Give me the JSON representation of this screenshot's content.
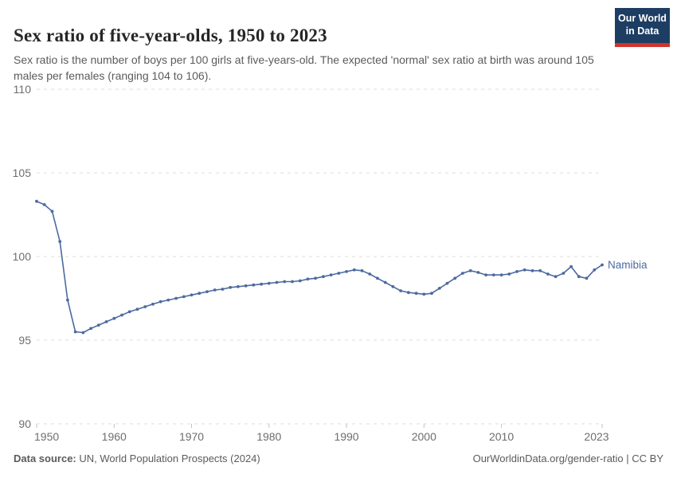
{
  "header": {
    "title": "Sex ratio of five-year-olds, 1950 to 2023",
    "subtitle": "Sex ratio is the number of boys per 100 girls at five-years-old. The expected 'normal' sex ratio at birth was around 105 males per females (ranging 104 to 106).",
    "logo": {
      "line1": "Our World",
      "line2": "in Data"
    }
  },
  "chart_data": {
    "type": "line",
    "title": "Sex ratio of five-year-olds, 1950 to 2023",
    "xlabel": "",
    "ylabel": "",
    "xlim": [
      1950,
      2023
    ],
    "ylim": [
      90,
      110
    ],
    "y_ticks": [
      90,
      95,
      100,
      105,
      110
    ],
    "x_ticks": [
      1950,
      1960,
      1970,
      1980,
      1990,
      2000,
      2010,
      2023
    ],
    "grid": "horizontal-dashed",
    "legend_position": "end-of-line-label",
    "marker": "circle",
    "x": [
      1950,
      1951,
      1952,
      1953,
      1954,
      1955,
      1956,
      1957,
      1958,
      1959,
      1960,
      1961,
      1962,
      1963,
      1964,
      1965,
      1966,
      1967,
      1968,
      1969,
      1970,
      1971,
      1972,
      1973,
      1974,
      1975,
      1976,
      1977,
      1978,
      1979,
      1980,
      1981,
      1982,
      1983,
      1984,
      1985,
      1986,
      1987,
      1988,
      1989,
      1990,
      1991,
      1992,
      1993,
      1994,
      1995,
      1996,
      1997,
      1998,
      1999,
      2000,
      2001,
      2002,
      2003,
      2004,
      2005,
      2006,
      2007,
      2008,
      2009,
      2010,
      2011,
      2012,
      2013,
      2014,
      2015,
      2016,
      2017,
      2018,
      2019,
      2020,
      2021,
      2022,
      2023
    ],
    "series": [
      {
        "name": "Namibia",
        "color": "#4C6AA0",
        "values": [
          103.3,
          103.1,
          102.7,
          100.9,
          97.4,
          95.5,
          95.45,
          95.7,
          95.9,
          96.1,
          96.3,
          96.5,
          96.7,
          96.85,
          97.0,
          97.15,
          97.3,
          97.4,
          97.5,
          97.6,
          97.7,
          97.8,
          97.9,
          98.0,
          98.05,
          98.15,
          98.2,
          98.25,
          98.3,
          98.35,
          98.4,
          98.45,
          98.5,
          98.5,
          98.55,
          98.65,
          98.7,
          98.8,
          98.9,
          99.0,
          99.1,
          99.2,
          99.15,
          98.95,
          98.7,
          98.45,
          98.2,
          97.95,
          97.85,
          97.8,
          97.75,
          97.8,
          98.1,
          98.4,
          98.7,
          99.0,
          99.15,
          99.05,
          98.9,
          98.9,
          98.9,
          98.95,
          99.1,
          99.2,
          99.15,
          99.15,
          98.95,
          98.8,
          99.0,
          99.4,
          98.8,
          98.7,
          99.2,
          99.5
        ]
      }
    ],
    "colors": {
      "grid": "#dedede",
      "tick_text": "#6e6e6e",
      "tick_mark": "#c2c2c2"
    }
  },
  "footer": {
    "source_label": "Data source:",
    "source_text": " UN, World Population Prospects (2024)",
    "credit": "OurWorldinData.org/gender-ratio | CC BY"
  }
}
